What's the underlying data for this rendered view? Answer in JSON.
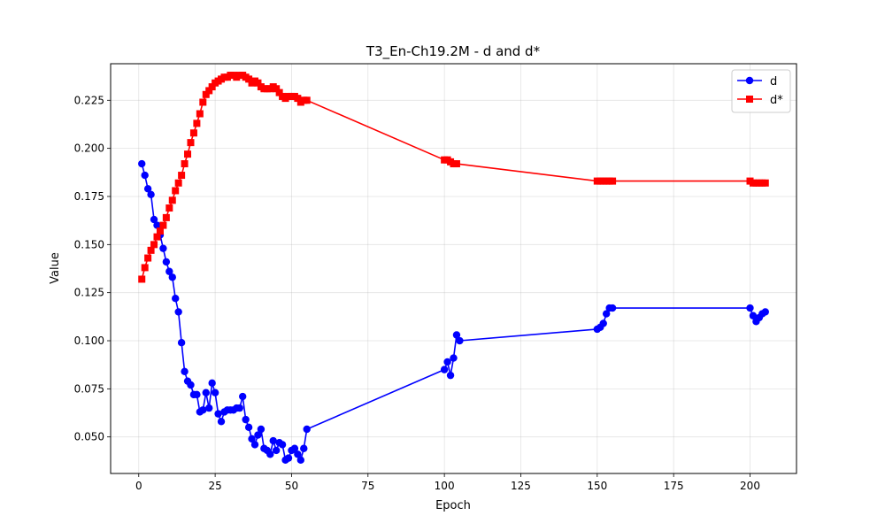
{
  "chart_data": {
    "type": "line",
    "title": "T3_En-Ch19.2M - d and d*",
    "xlabel": "Epoch",
    "ylabel": "Value",
    "xlim": [
      -9.2,
      215.2
    ],
    "ylim": [
      0.031,
      0.244
    ],
    "xticks": [
      0,
      25,
      50,
      75,
      100,
      125,
      150,
      175,
      200
    ],
    "xtick_labels": [
      "0",
      "25",
      "50",
      "75",
      "100",
      "125",
      "150",
      "175",
      "200"
    ],
    "yticks": [
      0.05,
      0.075,
      0.1,
      0.125,
      0.15,
      0.175,
      0.2,
      0.225
    ],
    "ytick_labels": [
      "0.050",
      "0.075",
      "0.100",
      "0.125",
      "0.150",
      "0.175",
      "0.200",
      "0.225"
    ],
    "grid": true,
    "legend_position": "top-right",
    "series": [
      {
        "name": "d",
        "color": "#0000ff",
        "marker": "circle",
        "x": [
          1,
          2,
          3,
          4,
          5,
          6,
          7,
          8,
          9,
          10,
          11,
          12,
          13,
          14,
          15,
          16,
          17,
          18,
          19,
          20,
          21,
          22,
          23,
          24,
          25,
          26,
          27,
          28,
          29,
          30,
          31,
          32,
          33,
          34,
          35,
          36,
          37,
          38,
          39,
          40,
          41,
          42,
          43,
          44,
          45,
          46,
          47,
          48,
          49,
          50,
          51,
          52,
          53,
          54,
          55,
          100,
          101,
          102,
          103,
          104,
          105,
          150,
          151,
          152,
          153,
          154,
          155,
          200,
          201,
          202,
          203,
          204,
          205
        ],
        "values": [
          0.192,
          0.186,
          0.179,
          0.176,
          0.163,
          0.16,
          0.155,
          0.148,
          0.141,
          0.136,
          0.133,
          0.122,
          0.115,
          0.099,
          0.084,
          0.079,
          0.077,
          0.072,
          0.072,
          0.063,
          0.064,
          0.073,
          0.065,
          0.078,
          0.073,
          0.062,
          0.058,
          0.063,
          0.064,
          0.064,
          0.064,
          0.065,
          0.065,
          0.071,
          0.059,
          0.055,
          0.049,
          0.046,
          0.051,
          0.054,
          0.044,
          0.043,
          0.041,
          0.048,
          0.043,
          0.047,
          0.046,
          0.038,
          0.039,
          0.043,
          0.044,
          0.041,
          0.038,
          0.044,
          0.054,
          0.085,
          0.089,
          0.082,
          0.091,
          0.103,
          0.1,
          0.106,
          0.107,
          0.109,
          0.114,
          0.117,
          0.117,
          0.117,
          0.113,
          0.11,
          0.112,
          0.114,
          0.115
        ]
      },
      {
        "name": "d*",
        "color": "#ff0000",
        "marker": "square",
        "x": [
          1,
          2,
          3,
          4,
          5,
          6,
          7,
          8,
          9,
          10,
          11,
          12,
          13,
          14,
          15,
          16,
          17,
          18,
          19,
          20,
          21,
          22,
          23,
          24,
          25,
          26,
          27,
          28,
          29,
          30,
          31,
          32,
          33,
          34,
          35,
          36,
          37,
          38,
          39,
          40,
          41,
          42,
          43,
          44,
          45,
          46,
          47,
          48,
          49,
          50,
          51,
          52,
          53,
          54,
          55,
          100,
          101,
          102,
          103,
          104,
          150,
          151,
          152,
          153,
          154,
          155,
          200,
          201,
          202,
          203,
          204,
          205
        ],
        "values": [
          0.132,
          0.138,
          0.143,
          0.147,
          0.15,
          0.154,
          0.157,
          0.16,
          0.164,
          0.169,
          0.173,
          0.178,
          0.182,
          0.186,
          0.192,
          0.197,
          0.203,
          0.208,
          0.213,
          0.218,
          0.224,
          0.228,
          0.23,
          0.232,
          0.234,
          0.235,
          0.236,
          0.237,
          0.237,
          0.238,
          0.238,
          0.237,
          0.238,
          0.238,
          0.237,
          0.236,
          0.234,
          0.235,
          0.234,
          0.232,
          0.231,
          0.231,
          0.231,
          0.232,
          0.231,
          0.229,
          0.227,
          0.226,
          0.227,
          0.227,
          0.227,
          0.226,
          0.224,
          0.225,
          0.225,
          0.194,
          0.194,
          0.193,
          0.192,
          0.192,
          0.183,
          0.183,
          0.183,
          0.183,
          0.183,
          0.183,
          0.183,
          0.182,
          0.182,
          0.182,
          0.182,
          0.182
        ]
      }
    ]
  }
}
